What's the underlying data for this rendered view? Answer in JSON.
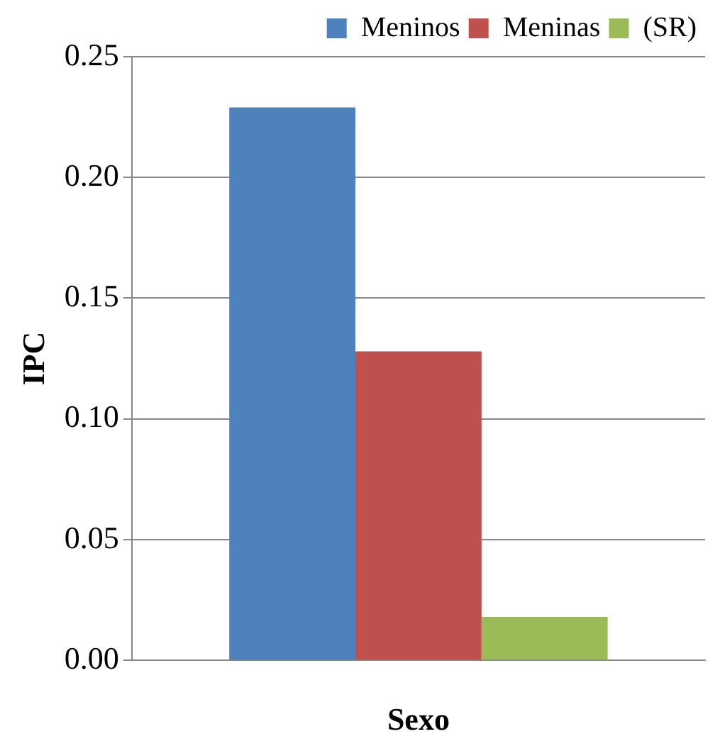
{
  "chart_data": {
    "type": "bar",
    "xlabel": "Sexo",
    "ylabel": "IPC",
    "categories": [
      null
    ],
    "series": [
      {
        "name": "Meninos",
        "color": "#4f81bd",
        "values": [
          0.229
        ]
      },
      {
        "name": "Meninas",
        "color": "#c0504d",
        "values": [
          0.128
        ]
      },
      {
        "name": "(SR)",
        "color": "#9bbb59",
        "values": [
          0.018
        ]
      }
    ],
    "ylim": [
      0,
      0.25
    ],
    "yticks": [
      {
        "value": 0,
        "label": "0.00"
      },
      {
        "value": 0.05,
        "label": "0.05"
      },
      {
        "value": 0.1,
        "label": "0.10"
      },
      {
        "value": 0.15,
        "label": "0.15"
      },
      {
        "value": 0.2,
        "label": "0.20"
      },
      {
        "value": 0.25,
        "label": "0.25"
      }
    ],
    "grid": "y",
    "legend": "top right"
  }
}
